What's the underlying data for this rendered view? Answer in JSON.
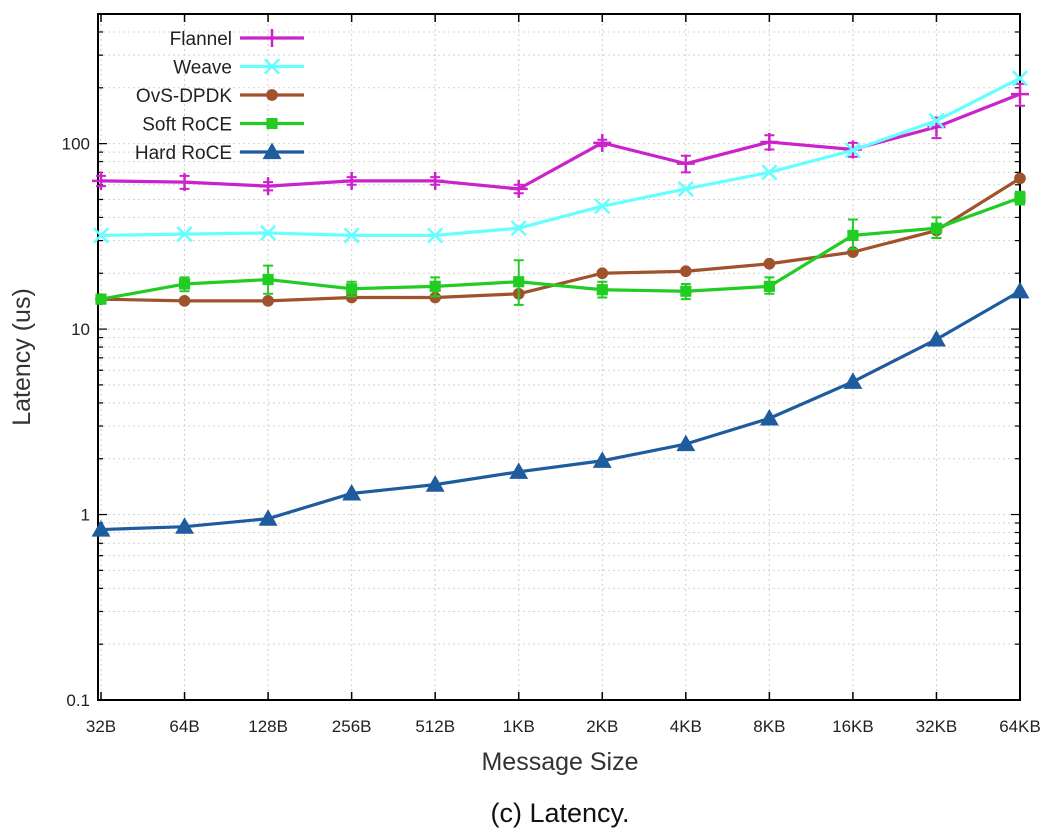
{
  "caption": "(c) Latency.",
  "chart_data": {
    "type": "line",
    "xlabel": "Message Size",
    "ylabel": "Latency (us)",
    "y_scale": "log",
    "ylim": [
      0.1,
      500
    ],
    "grid": true,
    "legend_position": "top-left",
    "categories": [
      "32B",
      "64B",
      "128B",
      "256B",
      "512B",
      "1KB",
      "2KB",
      "4KB",
      "8KB",
      "16KB",
      "32KB",
      "64KB"
    ],
    "y_ticks": [
      {
        "value": 0.1,
        "label": "0.1"
      },
      {
        "value": 1,
        "label": "1"
      },
      {
        "value": 10,
        "label": "10"
      },
      {
        "value": 100,
        "label": "100"
      }
    ],
    "series": [
      {
        "name": "Flannel",
        "color": "#cc22cc",
        "marker": "plus",
        "values": [
          63,
          62,
          59,
          63,
          63,
          57,
          101,
          78,
          102,
          93,
          123,
          185
        ],
        "err_low": [
          59,
          57,
          56,
          60,
          60,
          54,
          97,
          70,
          93,
          85,
          107,
          160
        ],
        "err_high": [
          67,
          67,
          62,
          66,
          66,
          60,
          105,
          86,
          111,
          101,
          138,
          210
        ]
      },
      {
        "name": "Weave",
        "color": "#66ffff",
        "marker": "x",
        "values": [
          32,
          32.5,
          33,
          32,
          32,
          35,
          46,
          57,
          70,
          92,
          133,
          225
        ]
      },
      {
        "name": "OvS-DPDK",
        "color": "#a0522d",
        "marker": "circle",
        "values": [
          14.5,
          14.2,
          14.2,
          14.8,
          14.8,
          15.5,
          20,
          20.5,
          22.5,
          26,
          34,
          65
        ]
      },
      {
        "name": "Soft RoCE",
        "color": "#22cc22",
        "marker": "square",
        "values": [
          14.5,
          17.5,
          18.5,
          16.5,
          17,
          18,
          16.3,
          16,
          17,
          32,
          35,
          51
        ],
        "err_low": [
          14,
          16,
          15.5,
          15,
          15,
          13.5,
          14.8,
          14.5,
          15.5,
          27,
          31,
          47
        ],
        "err_high": [
          15,
          19,
          22,
          18,
          19,
          23.5,
          18,
          17.5,
          19,
          39,
          40,
          55
        ]
      },
      {
        "name": "Hard RoCE",
        "color": "#1f5c9e",
        "marker": "triangle",
        "values": [
          0.83,
          0.86,
          0.95,
          1.3,
          1.45,
          1.7,
          1.95,
          2.4,
          3.3,
          5.2,
          8.8,
          16
        ]
      }
    ]
  }
}
